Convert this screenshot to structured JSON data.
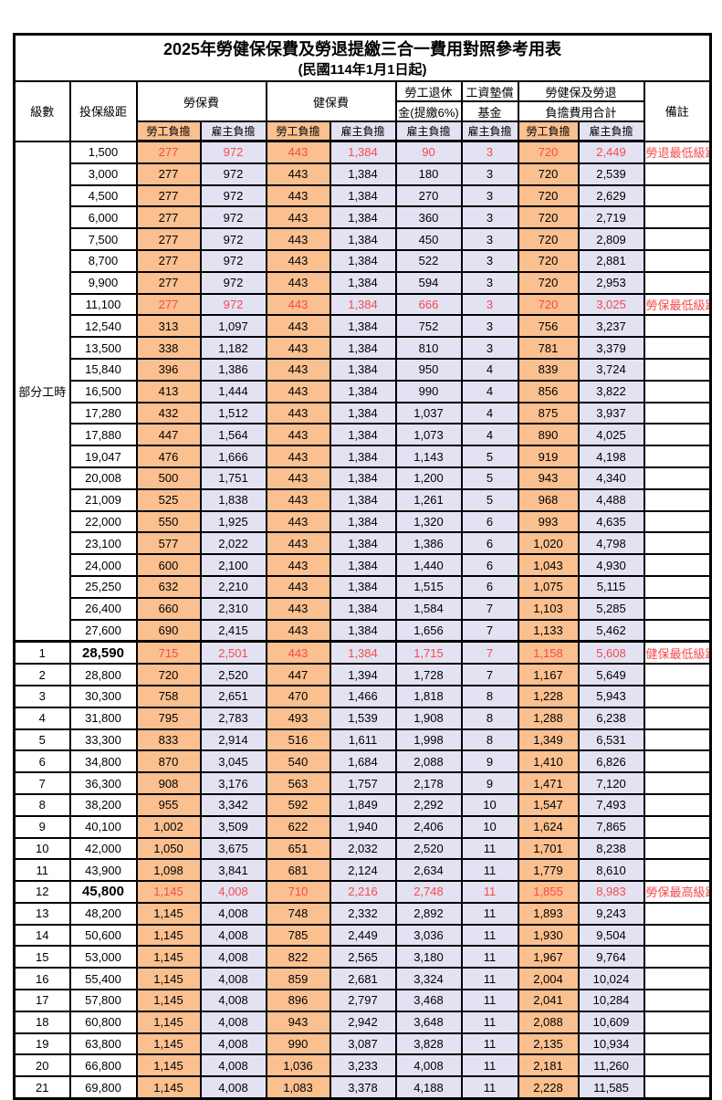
{
  "title": "2025年勞健保保費及勞退提繳三合一費用對照參考用表",
  "subtitle": "(民國114年1月1日起)",
  "header": {
    "level": "級數",
    "bracket": "投保級距",
    "labor_insurance": "勞保費",
    "health_insurance": "健保費",
    "pension_line1": "勞工退休",
    "pension_line2": "金(提繳6%)",
    "wage_fund_line1": "工資墊償",
    "wage_fund_line2": "基金",
    "total_line1": "勞健保及勞退",
    "total_line2": "負擔費用合計",
    "remark": "備註",
    "employee_share": "勞工負擔",
    "employer_share": "雇主負擔"
  },
  "part_time_label": "部分工時",
  "colors": {
    "employee_bg": "#FAC090",
    "employer_bg": "#E2E2F2",
    "highlight_red": "#F64A4A",
    "border": "#000000"
  },
  "rows": [
    {
      "level": "部分工時",
      "level_span": 23,
      "bracket": "1,500",
      "values": [
        "277",
        "972",
        "443",
        "1,384",
        "90",
        "3",
        "720",
        "2,449"
      ],
      "remark": "勞退最低級距",
      "red": true,
      "bold": false,
      "section": false
    },
    {
      "level": null,
      "bracket": "3,000",
      "values": [
        "277",
        "972",
        "443",
        "1,384",
        "180",
        "3",
        "720",
        "2,539"
      ],
      "remark": "",
      "red": false,
      "bold": false,
      "section": false
    },
    {
      "level": null,
      "bracket": "4,500",
      "values": [
        "277",
        "972",
        "443",
        "1,384",
        "270",
        "3",
        "720",
        "2,629"
      ],
      "remark": "",
      "red": false,
      "bold": false,
      "section": false
    },
    {
      "level": null,
      "bracket": "6,000",
      "values": [
        "277",
        "972",
        "443",
        "1,384",
        "360",
        "3",
        "720",
        "2,719"
      ],
      "remark": "",
      "red": false,
      "bold": false,
      "section": false
    },
    {
      "level": null,
      "bracket": "7,500",
      "values": [
        "277",
        "972",
        "443",
        "1,384",
        "450",
        "3",
        "720",
        "2,809"
      ],
      "remark": "",
      "red": false,
      "bold": false,
      "section": false
    },
    {
      "level": null,
      "bracket": "8,700",
      "values": [
        "277",
        "972",
        "443",
        "1,384",
        "522",
        "3",
        "720",
        "2,881"
      ],
      "remark": "",
      "red": false,
      "bold": false,
      "section": false
    },
    {
      "level": null,
      "bracket": "9,900",
      "values": [
        "277",
        "972",
        "443",
        "1,384",
        "594",
        "3",
        "720",
        "2,953"
      ],
      "remark": "",
      "red": false,
      "bold": false,
      "section": false
    },
    {
      "level": null,
      "bracket": "11,100",
      "values": [
        "277",
        "972",
        "443",
        "1,384",
        "666",
        "3",
        "720",
        "3,025"
      ],
      "remark": "勞保最低級距",
      "red": true,
      "bold": false,
      "section": false
    },
    {
      "level": null,
      "bracket": "12,540",
      "values": [
        "313",
        "1,097",
        "443",
        "1,384",
        "752",
        "3",
        "756",
        "3,237"
      ],
      "remark": "",
      "red": false,
      "bold": false,
      "section": false
    },
    {
      "level": null,
      "bracket": "13,500",
      "values": [
        "338",
        "1,182",
        "443",
        "1,384",
        "810",
        "3",
        "781",
        "3,379"
      ],
      "remark": "",
      "red": false,
      "bold": false,
      "section": false
    },
    {
      "level": null,
      "bracket": "15,840",
      "values": [
        "396",
        "1,386",
        "443",
        "1,384",
        "950",
        "4",
        "839",
        "3,724"
      ],
      "remark": "",
      "red": false,
      "bold": false,
      "section": false
    },
    {
      "level": null,
      "bracket": "16,500",
      "values": [
        "413",
        "1,444",
        "443",
        "1,384",
        "990",
        "4",
        "856",
        "3,822"
      ],
      "remark": "",
      "red": false,
      "bold": false,
      "section": false
    },
    {
      "level": null,
      "bracket": "17,280",
      "values": [
        "432",
        "1,512",
        "443",
        "1,384",
        "1,037",
        "4",
        "875",
        "3,937"
      ],
      "remark": "",
      "red": false,
      "bold": false,
      "section": false
    },
    {
      "level": null,
      "bracket": "17,880",
      "values": [
        "447",
        "1,564",
        "443",
        "1,384",
        "1,073",
        "4",
        "890",
        "4,025"
      ],
      "remark": "",
      "red": false,
      "bold": false,
      "section": false
    },
    {
      "level": null,
      "bracket": "19,047",
      "values": [
        "476",
        "1,666",
        "443",
        "1,384",
        "1,143",
        "5",
        "919",
        "4,198"
      ],
      "remark": "",
      "red": false,
      "bold": false,
      "section": false
    },
    {
      "level": null,
      "bracket": "20,008",
      "values": [
        "500",
        "1,751",
        "443",
        "1,384",
        "1,200",
        "5",
        "943",
        "4,340"
      ],
      "remark": "",
      "red": false,
      "bold": false,
      "section": false
    },
    {
      "level": null,
      "bracket": "21,009",
      "values": [
        "525",
        "1,838",
        "443",
        "1,384",
        "1,261",
        "5",
        "968",
        "4,488"
      ],
      "remark": "",
      "red": false,
      "bold": false,
      "section": false
    },
    {
      "level": null,
      "bracket": "22,000",
      "values": [
        "550",
        "1,925",
        "443",
        "1,384",
        "1,320",
        "6",
        "993",
        "4,635"
      ],
      "remark": "",
      "red": false,
      "bold": false,
      "section": false
    },
    {
      "level": null,
      "bracket": "23,100",
      "values": [
        "577",
        "2,022",
        "443",
        "1,384",
        "1,386",
        "6",
        "1,020",
        "4,798"
      ],
      "remark": "",
      "red": false,
      "bold": false,
      "section": false
    },
    {
      "level": null,
      "bracket": "24,000",
      "values": [
        "600",
        "2,100",
        "443",
        "1,384",
        "1,440",
        "6",
        "1,043",
        "4,930"
      ],
      "remark": "",
      "red": false,
      "bold": false,
      "section": false
    },
    {
      "level": null,
      "bracket": "25,250",
      "values": [
        "632",
        "2,210",
        "443",
        "1,384",
        "1,515",
        "6",
        "1,075",
        "5,115"
      ],
      "remark": "",
      "red": false,
      "bold": false,
      "section": false
    },
    {
      "level": null,
      "bracket": "26,400",
      "values": [
        "660",
        "2,310",
        "443",
        "1,384",
        "1,584",
        "7",
        "1,103",
        "5,285"
      ],
      "remark": "",
      "red": false,
      "bold": false,
      "section": false
    },
    {
      "level": null,
      "bracket": "27,600",
      "values": [
        "690",
        "2,415",
        "443",
        "1,384",
        "1,656",
        "7",
        "1,133",
        "5,462"
      ],
      "remark": "",
      "red": false,
      "bold": false,
      "section": false
    },
    {
      "level": "1",
      "bracket": "28,590",
      "values": [
        "715",
        "2,501",
        "443",
        "1,384",
        "1,715",
        "7",
        "1,158",
        "5,608"
      ],
      "remark": "健保最低級距",
      "red": true,
      "bold": true,
      "section": true
    },
    {
      "level": "2",
      "bracket": "28,800",
      "values": [
        "720",
        "2,520",
        "447",
        "1,394",
        "1,728",
        "7",
        "1,167",
        "5,649"
      ],
      "remark": "",
      "red": false,
      "bold": false,
      "section": false
    },
    {
      "level": "3",
      "bracket": "30,300",
      "values": [
        "758",
        "2,651",
        "470",
        "1,466",
        "1,818",
        "8",
        "1,228",
        "5,943"
      ],
      "remark": "",
      "red": false,
      "bold": false,
      "section": false
    },
    {
      "level": "4",
      "bracket": "31,800",
      "values": [
        "795",
        "2,783",
        "493",
        "1,539",
        "1,908",
        "8",
        "1,288",
        "6,238"
      ],
      "remark": "",
      "red": false,
      "bold": false,
      "section": false
    },
    {
      "level": "5",
      "bracket": "33,300",
      "values": [
        "833",
        "2,914",
        "516",
        "1,611",
        "1,998",
        "8",
        "1,349",
        "6,531"
      ],
      "remark": "",
      "red": false,
      "bold": false,
      "section": false
    },
    {
      "level": "6",
      "bracket": "34,800",
      "values": [
        "870",
        "3,045",
        "540",
        "1,684",
        "2,088",
        "9",
        "1,410",
        "6,826"
      ],
      "remark": "",
      "red": false,
      "bold": false,
      "section": false
    },
    {
      "level": "7",
      "bracket": "36,300",
      "values": [
        "908",
        "3,176",
        "563",
        "1,757",
        "2,178",
        "9",
        "1,471",
        "7,120"
      ],
      "remark": "",
      "red": false,
      "bold": false,
      "section": false
    },
    {
      "level": "8",
      "bracket": "38,200",
      "values": [
        "955",
        "3,342",
        "592",
        "1,849",
        "2,292",
        "10",
        "1,547",
        "7,493"
      ],
      "remark": "",
      "red": false,
      "bold": false,
      "section": false
    },
    {
      "level": "9",
      "bracket": "40,100",
      "values": [
        "1,002",
        "3,509",
        "622",
        "1,940",
        "2,406",
        "10",
        "1,624",
        "7,865"
      ],
      "remark": "",
      "red": false,
      "bold": false,
      "section": false
    },
    {
      "level": "10",
      "bracket": "42,000",
      "values": [
        "1,050",
        "3,675",
        "651",
        "2,032",
        "2,520",
        "11",
        "1,701",
        "8,238"
      ],
      "remark": "",
      "red": false,
      "bold": false,
      "section": false
    },
    {
      "level": "11",
      "bracket": "43,900",
      "values": [
        "1,098",
        "3,841",
        "681",
        "2,124",
        "2,634",
        "11",
        "1,779",
        "8,610"
      ],
      "remark": "",
      "red": false,
      "bold": false,
      "section": false
    },
    {
      "level": "12",
      "bracket": "45,800",
      "values": [
        "1,145",
        "4,008",
        "710",
        "2,216",
        "2,748",
        "11",
        "1,855",
        "8,983"
      ],
      "remark": "勞保最高級距",
      "red": true,
      "bold": true,
      "section": false
    },
    {
      "level": "13",
      "bracket": "48,200",
      "values": [
        "1,145",
        "4,008",
        "748",
        "2,332",
        "2,892",
        "11",
        "1,893",
        "9,243"
      ],
      "remark": "",
      "red": false,
      "bold": false,
      "section": false
    },
    {
      "level": "14",
      "bracket": "50,600",
      "values": [
        "1,145",
        "4,008",
        "785",
        "2,449",
        "3,036",
        "11",
        "1,930",
        "9,504"
      ],
      "remark": "",
      "red": false,
      "bold": false,
      "section": false
    },
    {
      "level": "15",
      "bracket": "53,000",
      "values": [
        "1,145",
        "4,008",
        "822",
        "2,565",
        "3,180",
        "11",
        "1,967",
        "9,764"
      ],
      "remark": "",
      "red": false,
      "bold": false,
      "section": false
    },
    {
      "level": "16",
      "bracket": "55,400",
      "values": [
        "1,145",
        "4,008",
        "859",
        "2,681",
        "3,324",
        "11",
        "2,004",
        "10,024"
      ],
      "remark": "",
      "red": false,
      "bold": false,
      "section": false
    },
    {
      "level": "17",
      "bracket": "57,800",
      "values": [
        "1,145",
        "4,008",
        "896",
        "2,797",
        "3,468",
        "11",
        "2,041",
        "10,284"
      ],
      "remark": "",
      "red": false,
      "bold": false,
      "section": false
    },
    {
      "level": "18",
      "bracket": "60,800",
      "values": [
        "1,145",
        "4,008",
        "943",
        "2,942",
        "3,648",
        "11",
        "2,088",
        "10,609"
      ],
      "remark": "",
      "red": false,
      "bold": false,
      "section": false
    },
    {
      "level": "19",
      "bracket": "63,800",
      "values": [
        "1,145",
        "4,008",
        "990",
        "3,087",
        "3,828",
        "11",
        "2,135",
        "10,934"
      ],
      "remark": "",
      "red": false,
      "bold": false,
      "section": false
    },
    {
      "level": "20",
      "bracket": "66,800",
      "values": [
        "1,145",
        "4,008",
        "1,036",
        "3,233",
        "4,008",
        "11",
        "2,181",
        "11,260"
      ],
      "remark": "",
      "red": false,
      "bold": false,
      "section": false
    },
    {
      "level": "21",
      "bracket": "69,800",
      "values": [
        "1,145",
        "4,008",
        "1,083",
        "3,378",
        "4,188",
        "11",
        "2,228",
        "11,585"
      ],
      "remark": "",
      "red": false,
      "bold": false,
      "section": false
    }
  ]
}
